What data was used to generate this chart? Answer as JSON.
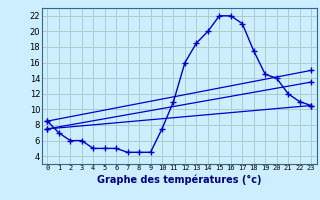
{
  "title": "Graphe des températures (°c)",
  "bg_color": "#cceeff",
  "grid_color": "#aacccc",
  "line_color": "#0000cc",
  "ylim": [
    3,
    23
  ],
  "xlim": [
    -0.5,
    23.5
  ],
  "yticks": [
    4,
    6,
    8,
    10,
    12,
    14,
    16,
    18,
    20,
    22
  ],
  "xticks": [
    0,
    1,
    2,
    3,
    4,
    5,
    6,
    7,
    8,
    9,
    10,
    11,
    12,
    13,
    14,
    15,
    16,
    17,
    18,
    19,
    20,
    21,
    22,
    23
  ],
  "x_labels": [
    "0",
    "1",
    "2",
    "3",
    "4",
    "5",
    "6",
    "7",
    "8",
    "9",
    "10",
    "11",
    "12",
    "13",
    "14",
    "15",
    "16",
    "17",
    "18",
    "19",
    "20",
    "21",
    "22",
    "23"
  ],
  "main_line": [
    8.5,
    7.0,
    6.0,
    6.0,
    5.0,
    5.0,
    5.0,
    4.5,
    4.5,
    4.5,
    7.5,
    11.0,
    16.0,
    18.5,
    20.0,
    22.0,
    22.0,
    21.0,
    17.5,
    14.5,
    14.0,
    12.0,
    11.0,
    10.5
  ],
  "straight_lines": [
    {
      "x0": 0,
      "y0": 7.5,
      "x1": 23,
      "y1": 10.5
    },
    {
      "x0": 0,
      "y0": 7.5,
      "x1": 23,
      "y1": 13.5
    },
    {
      "x0": 0,
      "y0": 8.5,
      "x1": 23,
      "y1": 15.0
    }
  ]
}
